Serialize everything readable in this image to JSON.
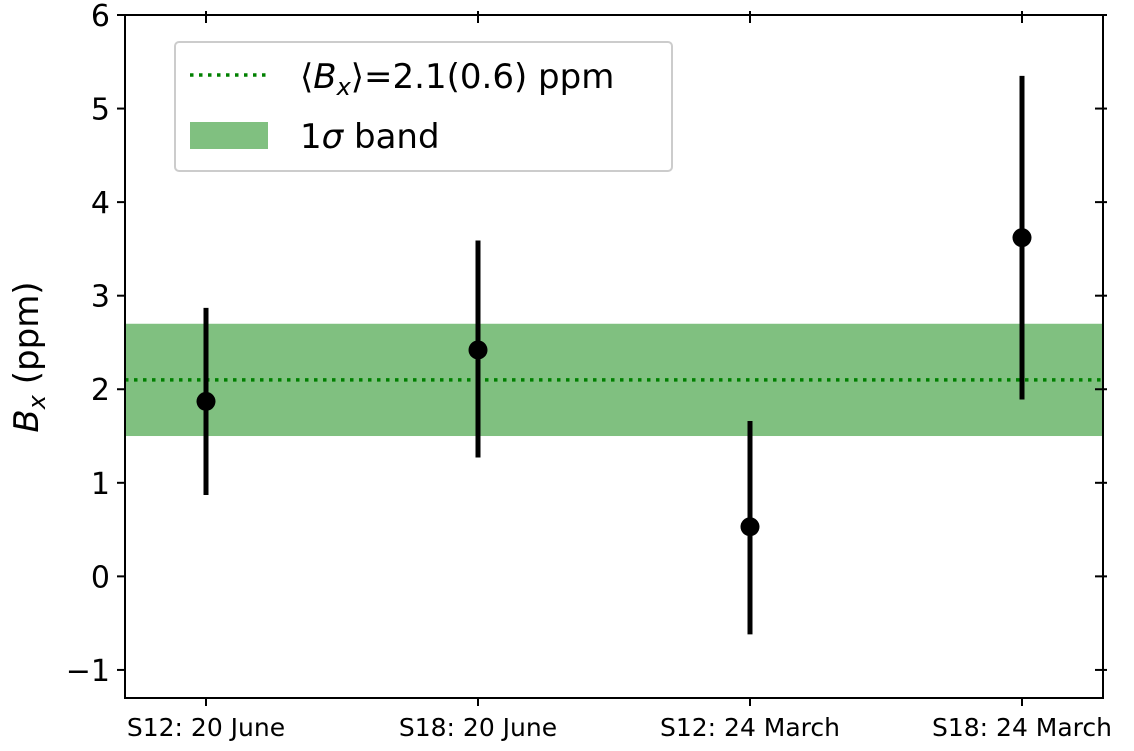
{
  "chart_data": {
    "type": "scatter",
    "title": "",
    "xlabel": "",
    "ylabel": {
      "symbol": "B",
      "subscript": "x",
      "unit": " (ppm)"
    },
    "categories": [
      "S12: 20 June",
      "S18: 20 June",
      "S12: 24 March",
      "S18: 24 March"
    ],
    "series": [
      {
        "values": [
          1.87,
          2.42,
          0.53,
          3.62
        ],
        "errors_lower": [
          1.0,
          1.15,
          1.15,
          1.73
        ],
        "errors_upper": [
          1.0,
          1.17,
          1.13,
          1.73
        ],
        "color": "#000000"
      }
    ],
    "mean": {
      "value": 2.1,
      "sigma": 0.6,
      "band": [
        1.5,
        2.7
      ],
      "line_color": "#008000",
      "band_color": "#80c080"
    },
    "legend": {
      "placement": "upper-left",
      "entries": [
        {
          "kind": "line",
          "prefix": "⟨",
          "symbol": "B",
          "subscript": "x",
          "suffix": "⟩=2.1(0.6) ppm"
        },
        {
          "kind": "patch",
          "prefix": "1",
          "symbol": "σ",
          "subscript": "",
          "suffix": " band"
        }
      ]
    },
    "ylim": [
      -1.3,
      6
    ],
    "yticks": [
      -1,
      0,
      1,
      2,
      3,
      4,
      5,
      6
    ],
    "ytick_labels": [
      "−1",
      "0",
      "1",
      "2",
      "3",
      "4",
      "5",
      "6"
    ],
    "grid": false
  }
}
